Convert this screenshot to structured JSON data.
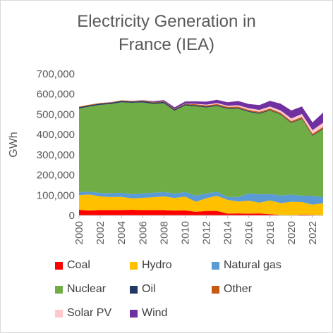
{
  "chart_data": {
    "type": "area",
    "stacked": true,
    "title": "Electricity Generation in France (IEA)",
    "title_lines": [
      "Electricity Generation in",
      "France (IEA)"
    ],
    "xlabel": "",
    "ylabel": "GWh",
    "ylim": [
      0,
      700000
    ],
    "yticks": [
      0,
      100000,
      200000,
      300000,
      400000,
      500000,
      600000,
      700000
    ],
    "ytick_labels": [
      "0",
      "100,000",
      "200,000",
      "300,000",
      "400,000",
      "500,000",
      "600,000",
      "700,000"
    ],
    "xlim": [
      2000,
      2023
    ],
    "xtick_labels": [
      "2000",
      "2002",
      "2004",
      "2006",
      "2008",
      "2010",
      "2012",
      "2014",
      "2016",
      "2018",
      "2020",
      "2022"
    ],
    "x": [
      2000,
      2001,
      2002,
      2003,
      2004,
      2005,
      2006,
      2007,
      2008,
      2009,
      2010,
      2011,
      2012,
      2013,
      2014,
      2015,
      2016,
      2017,
      2018,
      2019,
      2020,
      2021,
      2022,
      2023
    ],
    "grid": false,
    "legend_position": "bottom",
    "series": [
      {
        "name": "Coal",
        "color": "#ff0000",
        "values": [
          28000,
          24000,
          27000,
          27000,
          27000,
          28000,
          26000,
          27000,
          26000,
          24000,
          25000,
          18000,
          22000,
          22000,
          9000,
          10000,
          9000,
          10000,
          6000,
          2000,
          1500,
          4000,
          3000,
          1000
        ]
      },
      {
        "name": "Hydro",
        "color": "#ffc000",
        "values": [
          72000,
          79000,
          67000,
          64000,
          65000,
          56000,
          61000,
          63000,
          68000,
          62000,
          68000,
          50000,
          63000,
          75000,
          68000,
          59000,
          64000,
          53000,
          68000,
          59000,
          66000,
          62000,
          50000,
          60000
        ]
      },
      {
        "name": "Natural gas",
        "color": "#5b9bd5",
        "values": [
          14000,
          15000,
          17000,
          19000,
          20000,
          22000,
          22000,
          22000,
          22000,
          22000,
          23000,
          30000,
          24000,
          20000,
          14000,
          22000,
          36000,
          42000,
          32000,
          38000,
          35000,
          32000,
          44000,
          30000
        ]
      },
      {
        "name": "Nuclear",
        "color": "#70ad47",
        "values": [
          415000,
          421000,
          436000,
          441000,
          448000,
          451000,
          450000,
          440000,
          439000,
          410000,
          428000,
          442000,
          425000,
          424000,
          436000,
          437000,
          403000,
          398000,
          413000,
          399000,
          354000,
          379000,
          296000,
          336000
        ]
      },
      {
        "name": "Oil",
        "color": "#203864",
        "values": [
          6000,
          6000,
          6000,
          6000,
          6000,
          6000,
          6000,
          6000,
          6000,
          6000,
          6000,
          5000,
          5000,
          5000,
          4000,
          4000,
          4000,
          4000,
          3000,
          3000,
          3000,
          3000,
          3000,
          3000
        ]
      },
      {
        "name": "Other",
        "color": "#c55a11",
        "values": [
          3000,
          3000,
          3000,
          3000,
          3000,
          3000,
          3000,
          3000,
          3000,
          3000,
          3000,
          5000,
          5000,
          5000,
          6000,
          6000,
          6000,
          6000,
          7000,
          7000,
          7000,
          7000,
          8000,
          8000
        ]
      },
      {
        "name": "Solar PV",
        "color": "#ffc7ce",
        "values": [
          0,
          0,
          0,
          0,
          0,
          0,
          0,
          0,
          100,
          200,
          600,
          2000,
          4000,
          5000,
          6000,
          7000,
          8000,
          9000,
          10000,
          11000,
          13000,
          15000,
          18000,
          21000
        ]
      },
      {
        "name": "Wind",
        "color": "#7030a0",
        "values": [
          100,
          100,
          300,
          400,
          600,
          1000,
          2000,
          4000,
          6000,
          8000,
          10000,
          12000,
          15000,
          16000,
          17000,
          21000,
          21000,
          24000,
          28000,
          34000,
          40000,
          37000,
          38000,
          50000
        ]
      }
    ]
  }
}
